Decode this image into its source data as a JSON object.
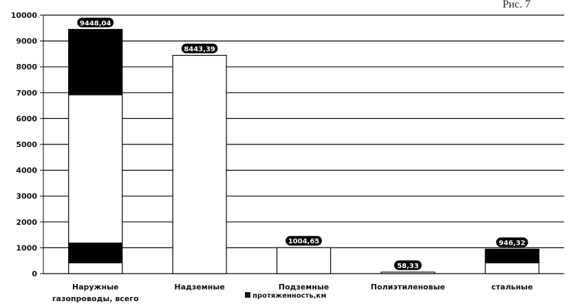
{
  "figure_label": "Рис. 7",
  "chart_data": {
    "type": "bar",
    "title": "",
    "xlabel": "",
    "ylabel": "",
    "ylim": [
      0,
      10000
    ],
    "yticks": [
      0,
      1000,
      2000,
      3000,
      4000,
      5000,
      6000,
      7000,
      8000,
      9000,
      10000
    ],
    "grid": true,
    "legend_position": "bottom",
    "categories": [
      [
        "Наружные",
        "газопроводы, всего"
      ],
      [
        "Надземные"
      ],
      [
        "Подземные"
      ],
      [
        "Полиэтиленовые"
      ],
      [
        "стальные"
      ]
    ],
    "series": [
      {
        "name": "протяженность,км",
        "values": [
          9448.04,
          8443.39,
          1004.65,
          58.33,
          946.32
        ],
        "labels": [
          "9448,04",
          "8443,39",
          "1004,65",
          "58,33",
          "946,32"
        ]
      }
    ],
    "colors": {
      "bar_fill": "#ffffff",
      "bar_band": "#000000",
      "grid": "#000000"
    }
  }
}
